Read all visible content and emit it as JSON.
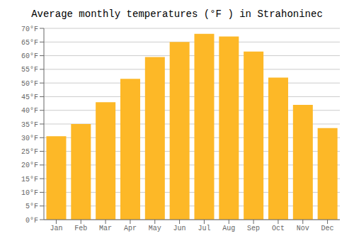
{
  "chart_data": {
    "type": "bar",
    "title": "Average monthly temperatures (°F ) in Strahoninec",
    "categories": [
      "Jan",
      "Feb",
      "Mar",
      "Apr",
      "May",
      "Jun",
      "Jul",
      "Aug",
      "Sep",
      "Oct",
      "Nov",
      "Dec"
    ],
    "values": [
      30.5,
      35.0,
      43.0,
      51.5,
      59.5,
      65.0,
      68.0,
      67.0,
      61.5,
      52.0,
      42.0,
      33.5
    ],
    "color": "#FDB827",
    "ylim": [
      0,
      70
    ],
    "yticks": [
      {
        "value": 0,
        "label": "0°F"
      },
      {
        "value": 5,
        "label": "5°F"
      },
      {
        "value": 10,
        "label": "10°F"
      },
      {
        "value": 15,
        "label": "15°F"
      },
      {
        "value": 20,
        "label": "20°F"
      },
      {
        "value": 25,
        "label": "25°F"
      },
      {
        "value": 30,
        "label": "30°F"
      },
      {
        "value": 35,
        "label": "35°F"
      },
      {
        "value": 40,
        "label": "40°F"
      },
      {
        "value": 45,
        "label": "45°F"
      },
      {
        "value": 50,
        "label": "50°F"
      },
      {
        "value": 55,
        "label": "55°F"
      },
      {
        "value": 60,
        "label": "60°F"
      },
      {
        "value": 65,
        "label": "65°F"
      },
      {
        "value": 70,
        "label": "70°F"
      }
    ],
    "grid": true
  }
}
